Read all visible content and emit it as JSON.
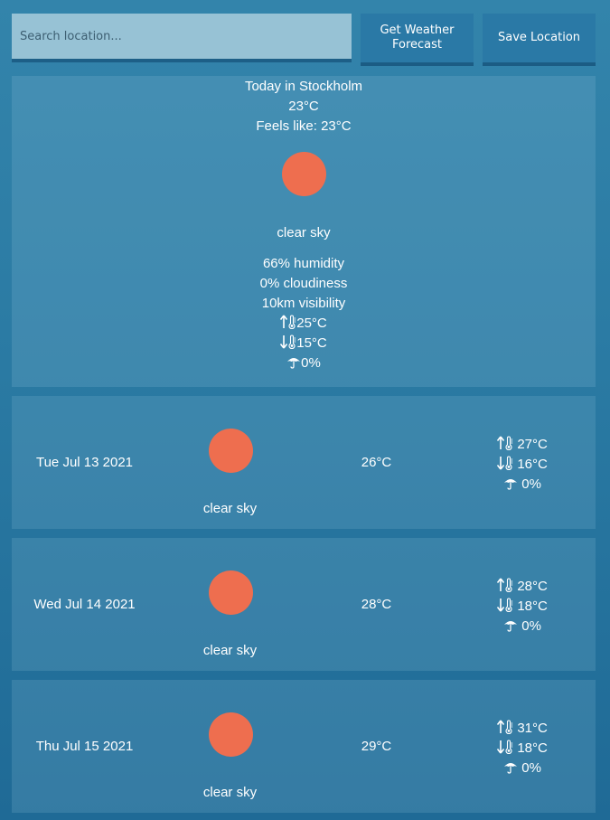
{
  "search": {
    "placeholder": "Search location...",
    "value": ""
  },
  "buttons": {
    "forecast": "Get Weather Forecast",
    "save": "Save Location"
  },
  "today": {
    "title": "Today in Stockholm",
    "temp": "23°C",
    "feels_like": "Feels like: 23°C",
    "icon": "sun-icon",
    "description": "clear sky",
    "humidity": "66% humidity",
    "cloudiness": "0% cloudiness",
    "visibility": "10km visibility",
    "max_temp": "25°C",
    "min_temp": "15°C",
    "precipitation": "0%"
  },
  "forecast": [
    {
      "date": "Tue Jul 13 2021",
      "icon": "sun-icon",
      "description": "clear sky",
      "temp": "26°C",
      "max": "27°C",
      "min": "16°C",
      "precip": "0%"
    },
    {
      "date": "Wed Jul 14 2021",
      "icon": "sun-icon",
      "description": "clear sky",
      "temp": "28°C",
      "max": "28°C",
      "min": "18°C",
      "precip": "0%"
    },
    {
      "date": "Thu Jul 15 2021",
      "icon": "sun-icon",
      "description": "clear sky",
      "temp": "29°C",
      "max": "31°C",
      "min": "18°C",
      "precip": "0%"
    }
  ],
  "colors": {
    "sun": "#ee6e4f",
    "background": "#2a7aa3",
    "search_bg": "#97c2d5"
  }
}
